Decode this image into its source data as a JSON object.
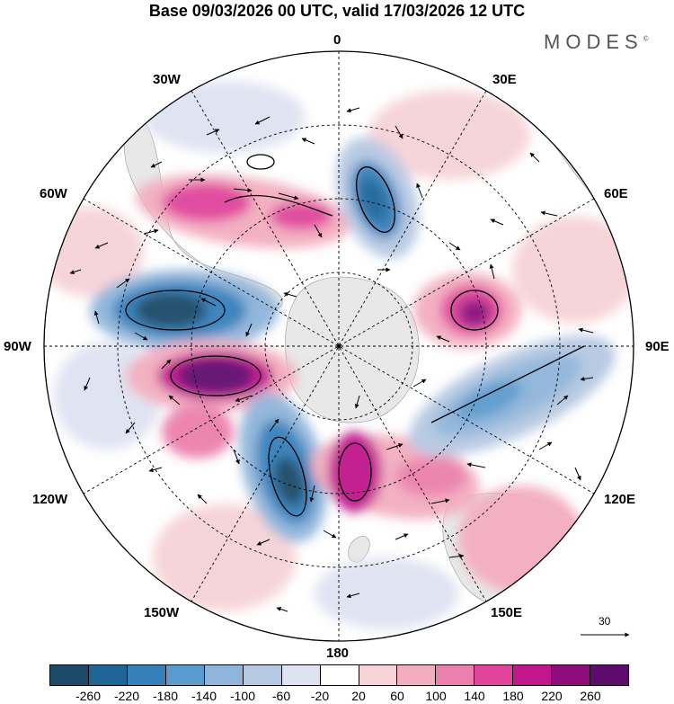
{
  "title": "Base 09/03/2026 00 UTC, valid 17/03/2026 12 UTC",
  "brand": "MODES",
  "brand_mark": "©",
  "longitude_labels": {
    "lon_0": "0",
    "lon_30e": "30E",
    "lon_60e": "60E",
    "lon_90e": "90E",
    "lon_120e": "120E",
    "lon_150e": "150E",
    "lon_180": "180",
    "lon_150w": "150W",
    "lon_120w": "120W",
    "lon_90w": "90W",
    "lon_60w": "60W",
    "lon_30w": "30W"
  },
  "vector_scale_label": "30",
  "colorbar": {
    "colors": [
      "#1c4a68",
      "#1f6596",
      "#3580bb",
      "#5b9bcd",
      "#8fb5da",
      "#b6c8e2",
      "#dfe2f1",
      "#ffffff",
      "#f6d3d8",
      "#f3adc0",
      "#ec80ad",
      "#e0449c",
      "#c0178d",
      "#8e0c7e",
      "#5e0b6e"
    ],
    "ticks": [
      "-260",
      "-220",
      "-180",
      "-140",
      "-100",
      "-60",
      "-20",
      "20",
      "60",
      "100",
      "140",
      "180",
      "220",
      "260"
    ]
  },
  "map_features": {
    "anomaly_centers": [
      {
        "name": "neg-90w",
        "value": -240,
        "color": "#1f5f8e"
      },
      {
        "name": "pos-100w",
        "value": 250,
        "color": "#6a0f75"
      },
      {
        "name": "neg-150w",
        "value": -230,
        "color": "#1f5f8e"
      },
      {
        "name": "pos-165e",
        "value": 180,
        "color": "#c0178d"
      },
      {
        "name": "neg-20e",
        "value": -200,
        "color": "#2b71a8"
      },
      {
        "name": "pos-75e",
        "value": 200,
        "color": "#b0158a"
      },
      {
        "name": "neg-100e",
        "value": -140,
        "color": "#5b9bcd"
      },
      {
        "name": "pos-45w",
        "value": 150,
        "color": "#e0449c"
      }
    ]
  }
}
